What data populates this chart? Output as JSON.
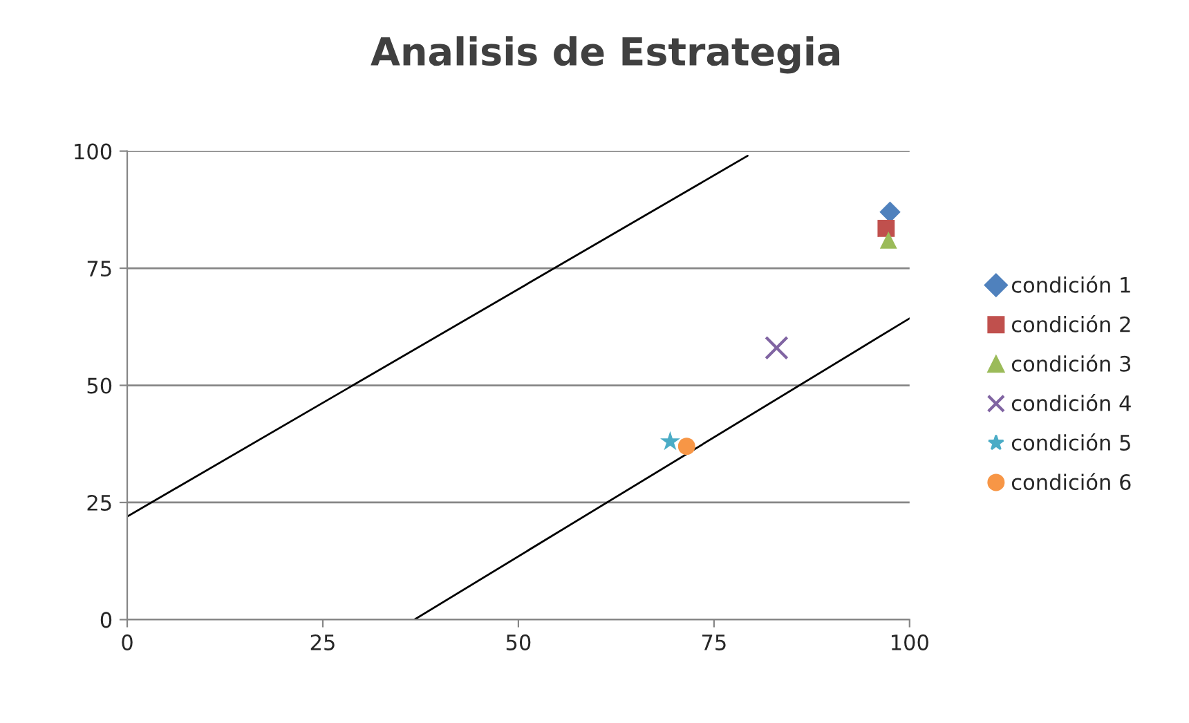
{
  "chart_data": {
    "type": "scatter",
    "title": "Analisis de Estrategia",
    "xlim": [
      0,
      100
    ],
    "xticks": [
      0,
      25,
      50,
      75,
      100
    ],
    "ylim": [
      0,
      100
    ],
    "yticks": [
      0,
      25,
      50,
      75,
      100
    ],
    "grid": "y",
    "legend": "right",
    "series": [
      {
        "name": "condición 1",
        "color": "#4f81bd",
        "marker": "diamond",
        "x": [
          97.5
        ],
        "values": [
          87
        ]
      },
      {
        "name": "condición 2",
        "color": "#c0504d",
        "marker": "square",
        "x": [
          97
        ],
        "values": [
          83.5
        ]
      },
      {
        "name": "condición 3",
        "color": "#9bbb59",
        "marker": "triangle",
        "x": [
          97.3
        ],
        "values": [
          81
        ]
      },
      {
        "name": "condición 4",
        "color": "#8064a2",
        "marker": "cross",
        "x": [
          83
        ],
        "values": [
          58
        ]
      },
      {
        "name": "condición 5",
        "color": "#4bacc6",
        "marker": "star",
        "x": [
          69.4
        ],
        "values": [
          38
        ]
      },
      {
        "name": "condición 6",
        "color": "#f79646",
        "marker": "circle",
        "x": [
          71.5
        ],
        "values": [
          37
        ]
      },
      {
        "type": "line",
        "color": "#000000",
        "marker": "none",
        "x": [
          0,
          79.3
        ],
        "values": [
          22,
          99
        ]
      },
      {
        "type": "line",
        "color": "#000000",
        "marker": "none",
        "x": [
          36.7,
          100
        ],
        "values": [
          0,
          64.3
        ]
      }
    ]
  }
}
